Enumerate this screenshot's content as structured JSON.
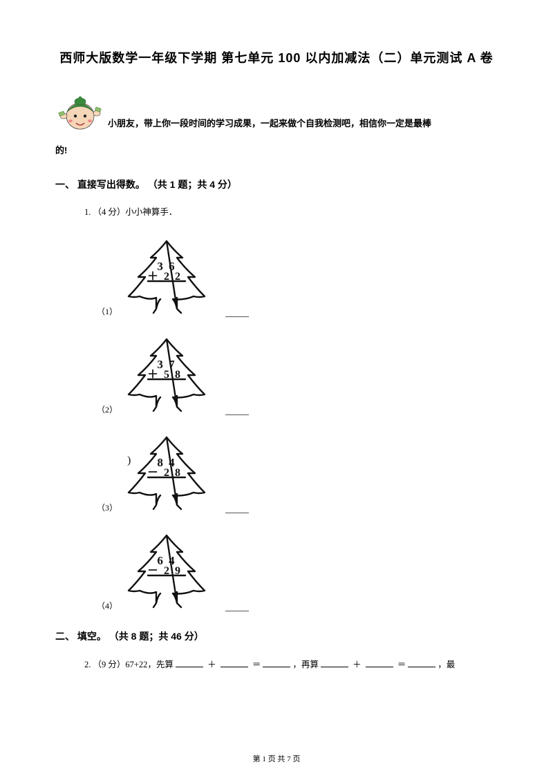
{
  "title": "西师大版数学一年级下学期 第七单元 100 以内加减法（二）单元测试 A 卷",
  "intro_line1": "小朋友，带上你一段时间的学习成果，一起来做个自我检测吧，相信你一定是最棒",
  "intro_line2": "的!",
  "section1": {
    "heading": "一、 直接写出得数。 （共 1 题；共 4 分）",
    "q1": "1. （4 分）小小神算手．",
    "items": [
      {
        "idx": "（1）",
        "top": "3 6",
        "bottom": "＋ 2 2"
      },
      {
        "idx": "（2）",
        "top": "3 7",
        "bottom": "＋ 5 8"
      },
      {
        "idx": "（3）",
        "top": "8 4",
        "bottom": "－ 2 8",
        "prefix": ")"
      },
      {
        "idx": "（4）",
        "top": "6 4",
        "bottom": "－ 2 9"
      }
    ]
  },
  "section2": {
    "heading": "二、 填空。 （共 8 题；共 46 分）",
    "q2_pre": "2. （9 分）67+22，先算",
    "q2_plus": " ＋ ",
    "q2_eq": " ＝",
    "q2_mid": "，再算",
    "q2_end": "，最"
  },
  "footer": "第 1 页 共 7 页",
  "style": {
    "tree_stroke": "#111111",
    "text_color": "#000000",
    "mascot": {
      "skin": "#f6d6b8",
      "cap": "#3a8a3e",
      "bills": "#8fbf6a",
      "blush": "#e88"
    }
  }
}
